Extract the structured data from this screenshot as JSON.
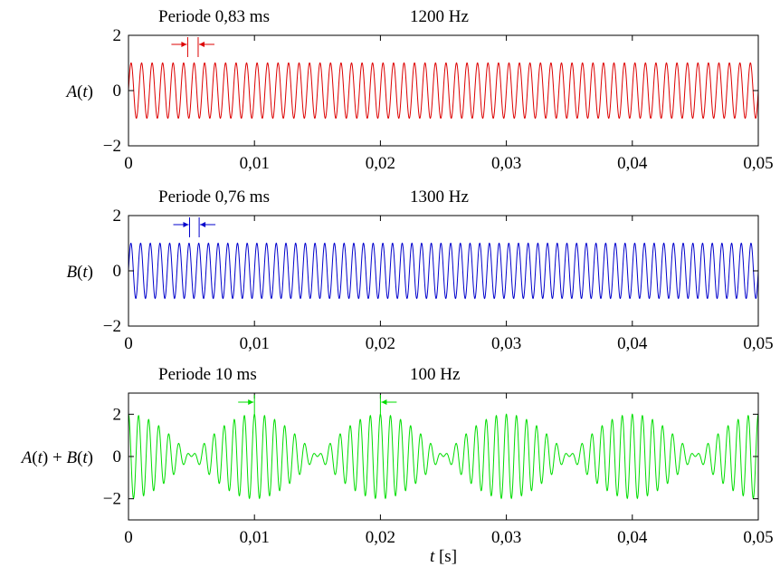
{
  "chart_data": [
    {
      "type": "line",
      "title": "",
      "ylabel": "A(t)",
      "xlabel": "",
      "xlim": [
        0,
        0.05
      ],
      "ylim": [
        -2,
        2
      ],
      "xticks": [
        0,
        0.01,
        0.02,
        0.03,
        0.04,
        0.05
      ],
      "xtick_labels": [
        "0",
        "0,01",
        "0,02",
        "0,03",
        "0,04",
        "0,05"
      ],
      "yticks": [
        -2,
        0,
        2
      ],
      "ytick_labels": [
        "−2",
        "0",
        "2"
      ],
      "annotations": {
        "period": "Periode 0,83 ms",
        "frequency": "1200 Hz"
      },
      "series": [
        {
          "function": "sine",
          "frequency_hz": 1200,
          "amplitude": 1,
          "period_ms": 0.83,
          "color": "#dd0000"
        }
      ]
    },
    {
      "type": "line",
      "title": "",
      "ylabel": "B(t)",
      "xlabel": "",
      "xlim": [
        0,
        0.05
      ],
      "ylim": [
        -2,
        2
      ],
      "xticks": [
        0,
        0.01,
        0.02,
        0.03,
        0.04,
        0.05
      ],
      "xtick_labels": [
        "0",
        "0,01",
        "0,02",
        "0,03",
        "0,04",
        "0,05"
      ],
      "yticks": [
        -2,
        0,
        2
      ],
      "ytick_labels": [
        "−2",
        "0",
        "2"
      ],
      "annotations": {
        "period": "Periode 0,76 ms",
        "frequency": "1300 Hz"
      },
      "series": [
        {
          "function": "sine",
          "frequency_hz": 1300,
          "amplitude": 1,
          "period_ms": 0.76,
          "color": "#0000cc"
        }
      ]
    },
    {
      "type": "line",
      "title": "",
      "ylabel": "A(t) + B(t)",
      "xlabel": "t [s]",
      "xlim": [
        0,
        0.05
      ],
      "ylim": [
        -3,
        3
      ],
      "xticks": [
        0,
        0.01,
        0.02,
        0.03,
        0.04,
        0.05
      ],
      "xtick_labels": [
        "0",
        "0,01",
        "0,02",
        "0,03",
        "0,04",
        "0,05"
      ],
      "yticks": [
        -2,
        0,
        2
      ],
      "ytick_labels": [
        "−2",
        "0",
        "2"
      ],
      "annotations": {
        "period": "Periode 10 ms",
        "frequency": "100 Hz"
      },
      "series": [
        {
          "function": "sum_of_sines",
          "components_hz": [
            1200,
            1300
          ],
          "amplitude": 1,
          "beat_frequency_hz": 100,
          "period_ms": 10,
          "color": "#00dd00"
        }
      ]
    }
  ]
}
